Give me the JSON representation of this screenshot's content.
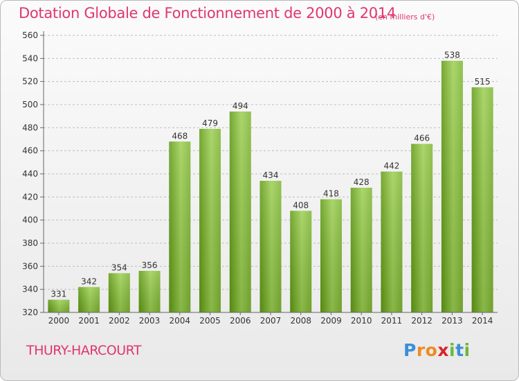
{
  "chart_data": {
    "type": "bar",
    "title": "Dotation Globale de Fonctionnement de 2000 à 2014",
    "subtitle": "(en milliers d'€)",
    "categories": [
      "2000",
      "2001",
      "2002",
      "2003",
      "2004",
      "2005",
      "2006",
      "2007",
      "2008",
      "2009",
      "2010",
      "2011",
      "2012",
      "2013",
      "2014"
    ],
    "values": [
      331,
      342,
      354,
      356,
      468,
      479,
      494,
      434,
      408,
      418,
      428,
      442,
      466,
      538,
      515
    ],
    "ylim": [
      320,
      560
    ],
    "yticks": [
      320,
      340,
      360,
      380,
      400,
      420,
      440,
      460,
      480,
      500,
      520,
      540,
      560
    ],
    "xlabel": "",
    "ylabel": "",
    "grid": "horizontal dashed"
  },
  "footer": {
    "commune": "THURY-HARCOURT",
    "logo_text": "Proxiti"
  },
  "colors": {
    "title": "#e0366e",
    "bar_light": "#a4d65c",
    "bar_dark": "#5f9a12"
  }
}
